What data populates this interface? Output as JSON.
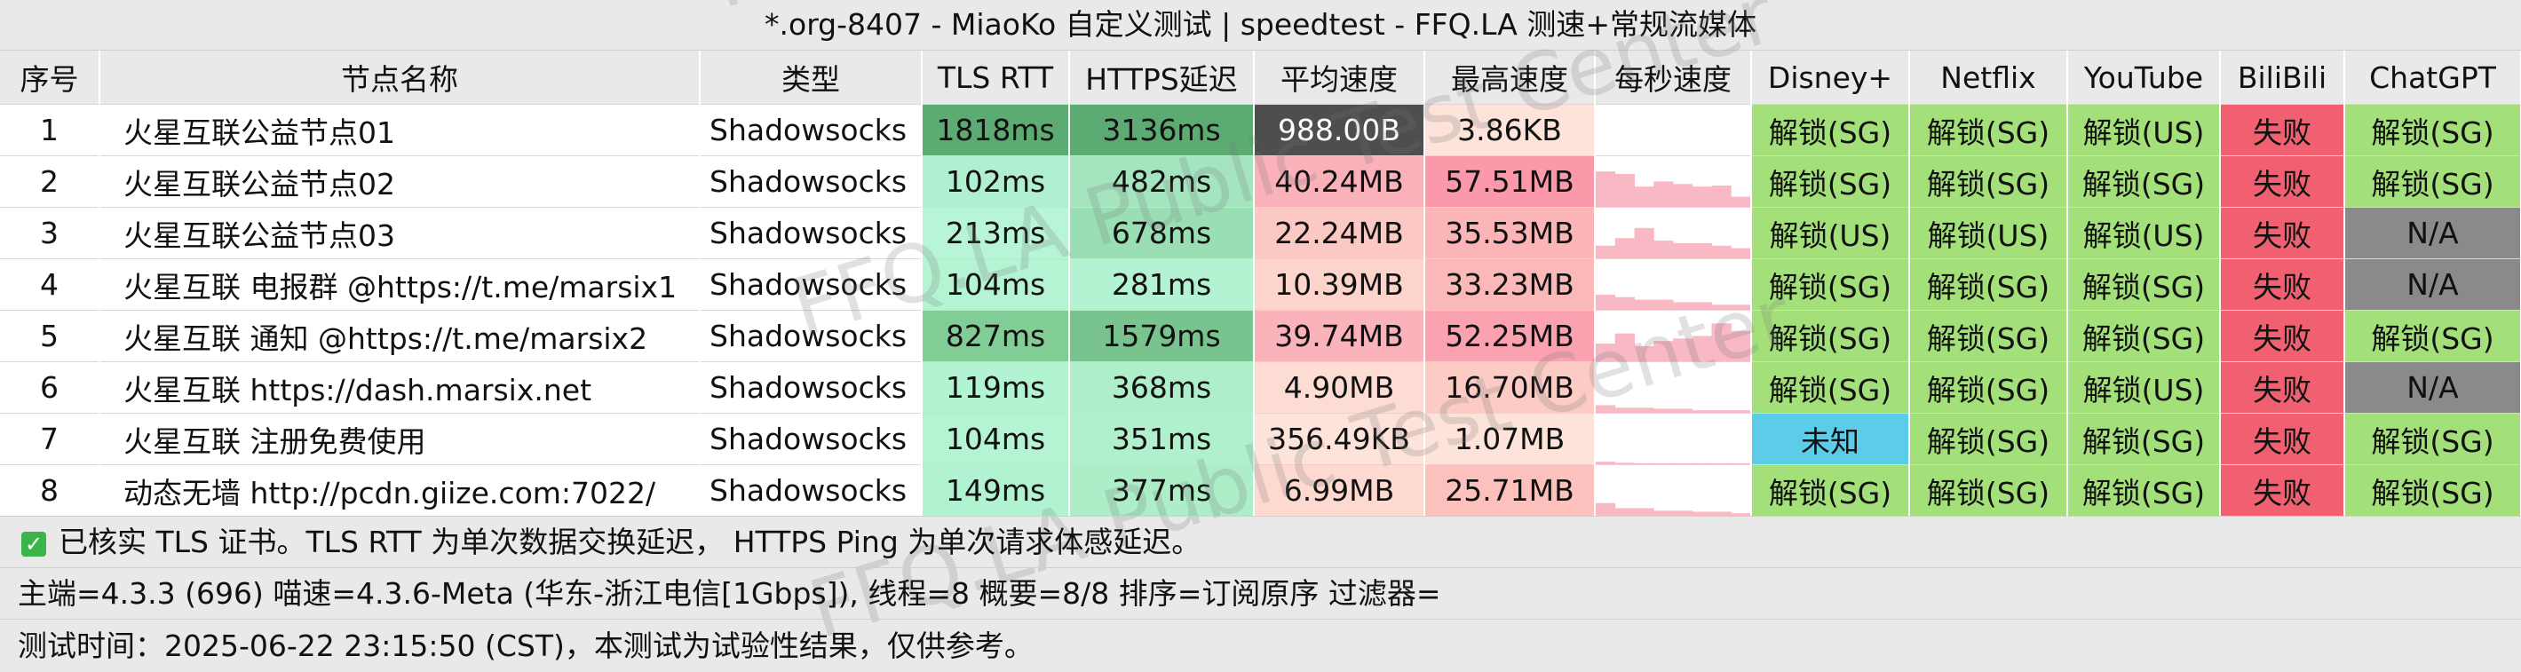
{
  "title": "*.org-8407 - MiaoKo 自定义测试 | speedtest - FFQ.LA 测速+常规流媒体",
  "headers": [
    "序号",
    "节点名称",
    "类型",
    "TLS RTT",
    "HTTPS延迟",
    "平均速度",
    "最高速度",
    "每秒速度",
    "Disney+",
    "Netflix",
    "YouTube",
    "BiliBili",
    "ChatGPT"
  ],
  "rows": [
    {
      "idx": "1",
      "name": "火星互联公益节点01",
      "type": "Shadowsocks",
      "tls": "1818ms",
      "https": "3136ms",
      "avg": "988.00B",
      "max": "3.86KB",
      "spark": [],
      "disney": "解锁(SG)",
      "netflix": "解锁(SG)",
      "youtube": "解锁(US)",
      "bili": "失败",
      "gpt": "解锁(SG)"
    },
    {
      "idx": "2",
      "name": "火星互联公益节点02",
      "type": "Shadowsocks",
      "tls": "102ms",
      "https": "482ms",
      "avg": "40.24MB",
      "max": "57.51MB",
      "spark": [
        0.7,
        0.65,
        0.4,
        0.5,
        0.45,
        0.4,
        0.42,
        0.2
      ],
      "disney": "解锁(SG)",
      "netflix": "解锁(SG)",
      "youtube": "解锁(SG)",
      "bili": "失败",
      "gpt": "解锁(SG)"
    },
    {
      "idx": "3",
      "name": "火星互联公益节点03",
      "type": "Shadowsocks",
      "tls": "213ms",
      "https": "678ms",
      "avg": "22.24MB",
      "max": "35.53MB",
      "spark": [
        0.25,
        0.4,
        0.6,
        0.35,
        0.3,
        0.3,
        0.25,
        0.2
      ],
      "disney": "解锁(US)",
      "netflix": "解锁(US)",
      "youtube": "解锁(US)",
      "bili": "失败",
      "gpt": "N/A"
    },
    {
      "idx": "4",
      "name": "火星互联 电报群 @https://t.me/marsix1",
      "type": "Shadowsocks",
      "tls": "104ms",
      "https": "281ms",
      "avg": "10.39MB",
      "max": "33.23MB",
      "spark": [
        0.3,
        0.25,
        0.2,
        0.2,
        0.15,
        0.15,
        0.1,
        0.1
      ],
      "disney": "解锁(SG)",
      "netflix": "解锁(SG)",
      "youtube": "解锁(SG)",
      "bili": "失败",
      "gpt": "N/A"
    },
    {
      "idx": "5",
      "name": "火星互联 通知 @https://t.me/marsix2",
      "type": "Shadowsocks",
      "tls": "827ms",
      "https": "1579ms",
      "avg": "39.74MB",
      "max": "52.25MB",
      "spark": [
        0.35,
        0.55,
        0.3,
        0.4,
        0.45,
        0.5,
        0.75,
        0.6
      ],
      "disney": "解锁(SG)",
      "netflix": "解锁(SG)",
      "youtube": "解锁(SG)",
      "bili": "失败",
      "gpt": "解锁(SG)"
    },
    {
      "idx": "6",
      "name": "火星互联 https://dash.marsix.net",
      "type": "Shadowsocks",
      "tls": "119ms",
      "https": "368ms",
      "avg": "4.90MB",
      "max": "16.70MB",
      "spark": [
        0.15,
        0.1,
        0.1,
        0.08,
        0.08,
        0.05,
        0.05,
        0.05
      ],
      "disney": "解锁(SG)",
      "netflix": "解锁(SG)",
      "youtube": "解锁(US)",
      "bili": "失败",
      "gpt": "N/A"
    },
    {
      "idx": "7",
      "name": "火星互联 注册免费使用",
      "type": "Shadowsocks",
      "tls": "104ms",
      "https": "351ms",
      "avg": "356.49KB",
      "max": "1.07MB",
      "spark": [
        0.05,
        0.03,
        0.02,
        0.02,
        0.02,
        0.02,
        0.02,
        0.02
      ],
      "disney": "未知",
      "netflix": "解锁(SG)",
      "youtube": "解锁(SG)",
      "bili": "失败",
      "gpt": "解锁(SG)"
    },
    {
      "idx": "8",
      "name": "动态无墙 http://pcdn.giize.com:7022/",
      "type": "Shadowsocks",
      "tls": "149ms",
      "https": "377ms",
      "avg": "6.99MB",
      "max": "25.71MB",
      "spark": [
        0.25,
        0.15,
        0.15,
        0.1,
        0.1,
        0.08,
        0.08,
        0.05
      ],
      "disney": "解锁(SG)",
      "netflix": "解锁(SG)",
      "youtube": "解锁(SG)",
      "bili": "失败",
      "gpt": "解锁(SG)"
    }
  ],
  "footer": {
    "check_icon": "check-icon",
    "line1": "已核实 TLS 证书。TLS RTT 为单次数据交换延迟， HTTPS Ping 为单次请求体感延迟。",
    "line2": "主端=4.3.3 (696) 喵速=4.3.6-Meta (华东-浙江电信[1Gbps]), 线程=8 概要=8/8 排序=订阅原序 过滤器=",
    "line3": "测试时间：2025-06-22 23:15:50 (CST)，本测试为试验性结果，仅供参考。"
  },
  "watermark": "FFQ.LA Public Test Center",
  "colors": {
    "unlock": "#a3e07a",
    "fail": "#f06070",
    "na": "#8a8a8a",
    "unknown": "#5ccde8",
    "spark": "#f8b8c4"
  }
}
